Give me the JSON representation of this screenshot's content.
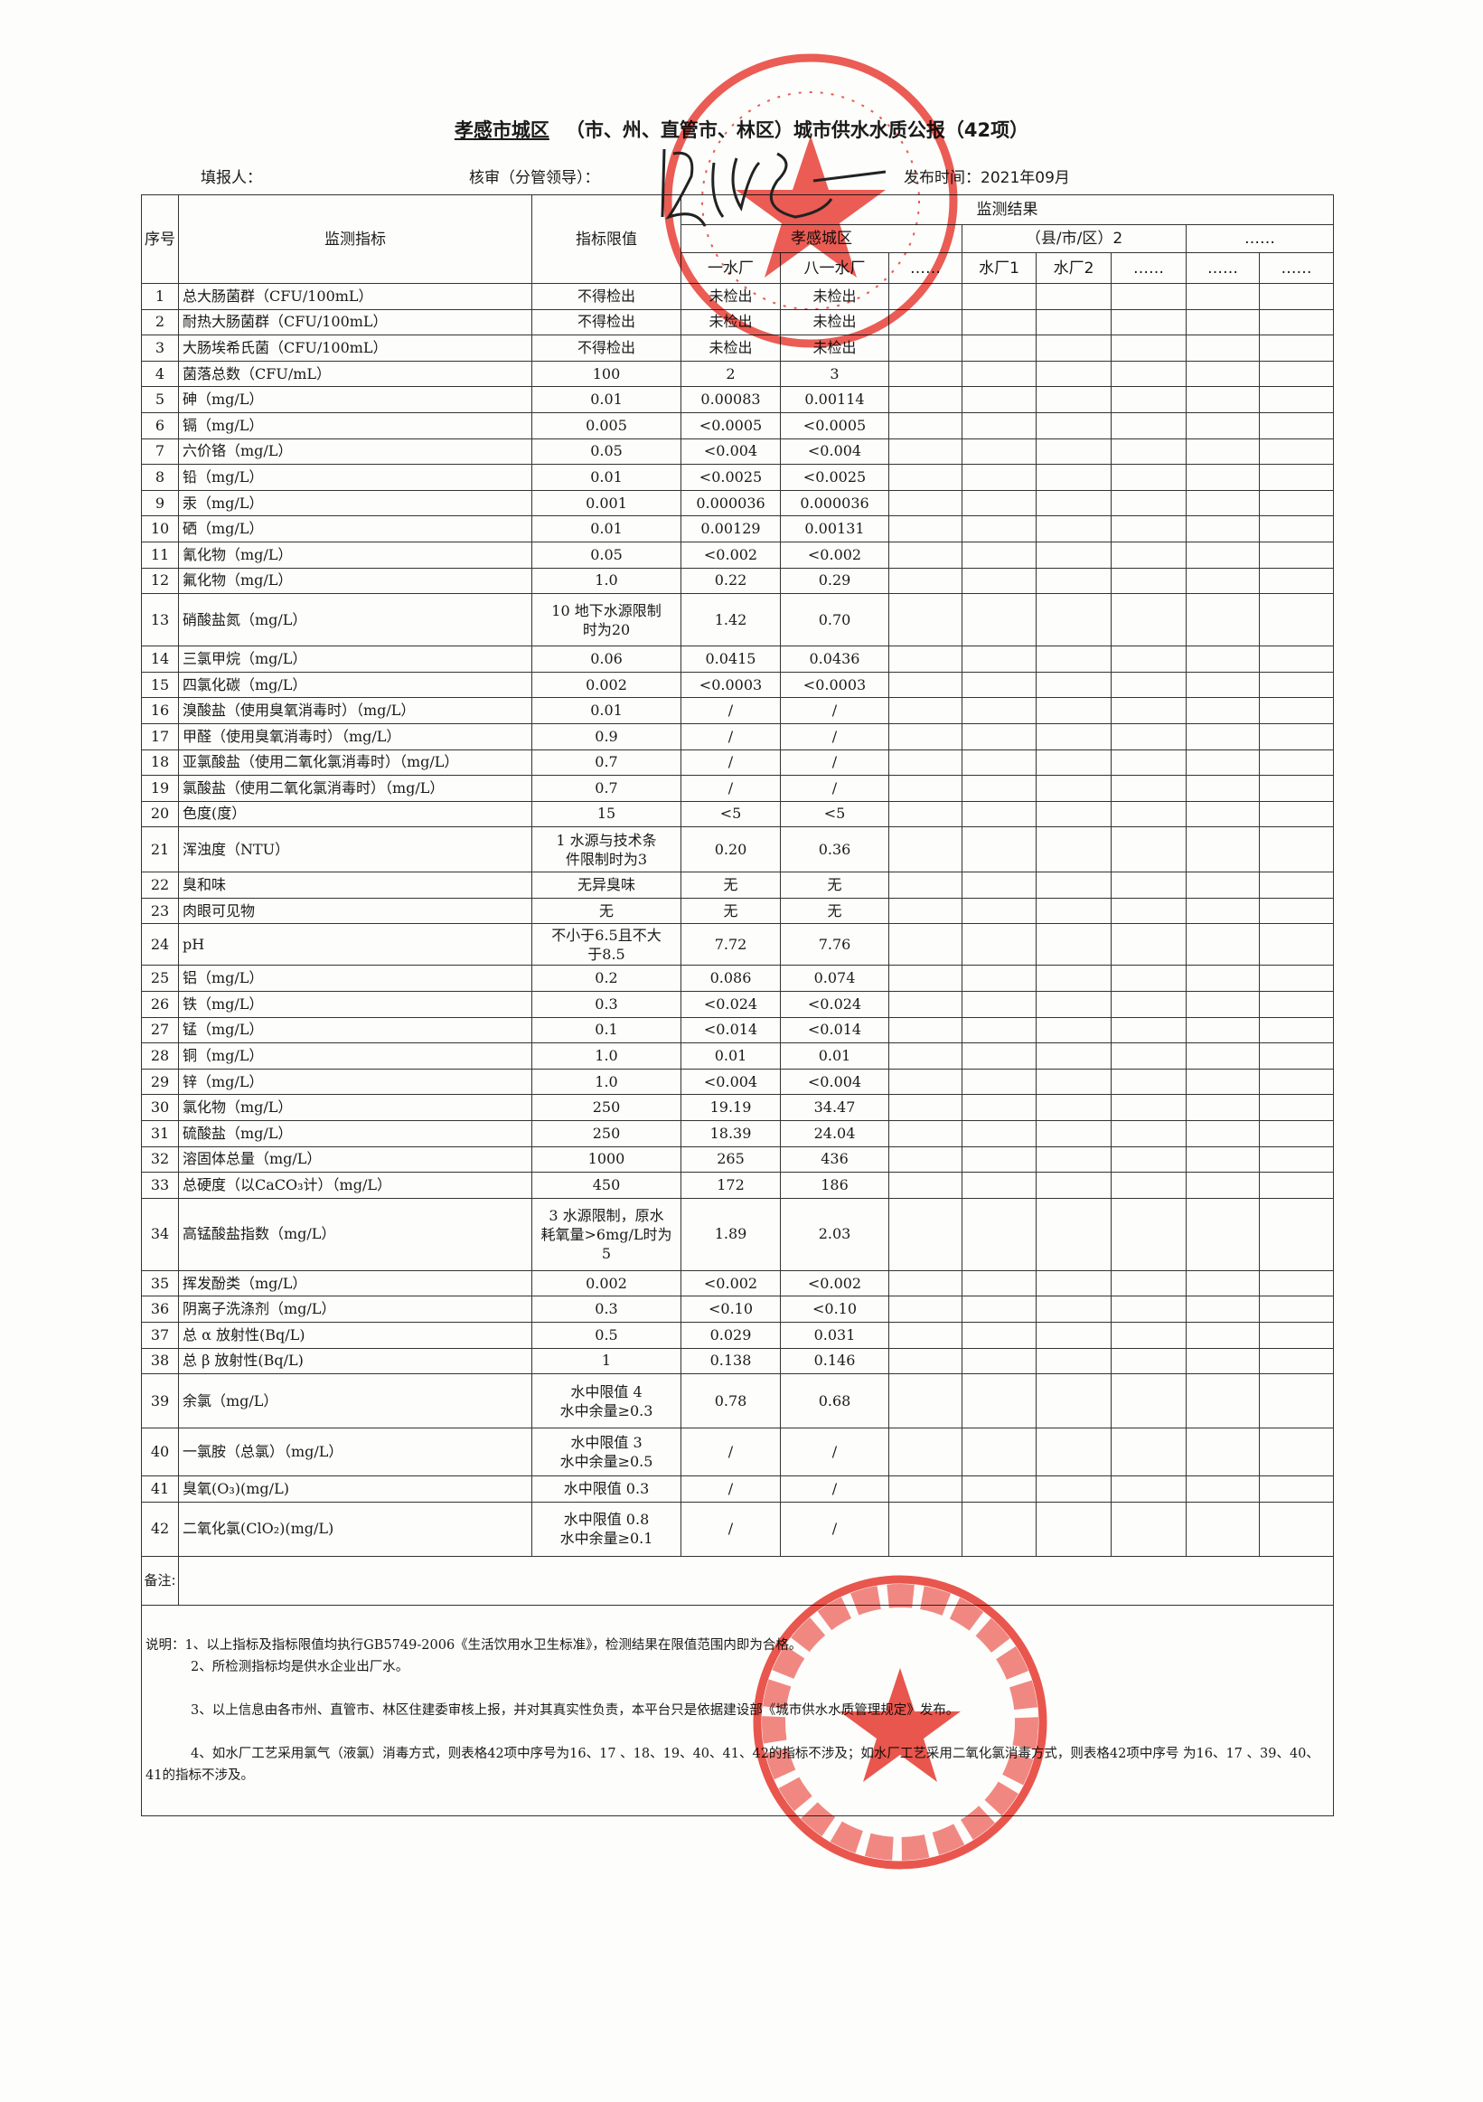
{
  "title": {
    "region": "孝感市城区",
    "rest": "（市、州、直管市、林区）城市供水水质公报（42项）"
  },
  "info": {
    "reporter": "填报人：",
    "reviewer": "核审（分管领导）：",
    "publish": "发布时间：2021年09月"
  },
  "header": {
    "no": "序号",
    "indicator": "监测指标",
    "limit": "指标限值",
    "results": "监测结果",
    "area1": "孝感城区",
    "area2": "（县/市/区）2",
    "area3": "……",
    "plants": [
      "一水厂",
      "八一水厂",
      "……",
      "水厂1",
      "水厂2",
      "……",
      "……",
      "……"
    ]
  },
  "rows": [
    [
      "1",
      "总大肠菌群（CFU/100mL）",
      "不得检出",
      "未检出",
      "未检出"
    ],
    [
      "2",
      "耐热大肠菌群（CFU/100mL）",
      "不得检出",
      "未检出",
      "未检出"
    ],
    [
      "3",
      "大肠埃希氏菌（CFU/100mL）",
      "不得检出",
      "未检出",
      "未检出"
    ],
    [
      "4",
      "菌落总数（CFU/mL）",
      "100",
      "2",
      "3"
    ],
    [
      "5",
      "砷（mg/L）",
      "0.01",
      "0.00083",
      "0.00114"
    ],
    [
      "6",
      "镉（mg/L）",
      "0.005",
      "<0.0005",
      "<0.0005"
    ],
    [
      "7",
      "六价铬（mg/L）",
      "0.05",
      "<0.004",
      "<0.004"
    ],
    [
      "8",
      "铅（mg/L）",
      "0.01",
      "<0.0025",
      "<0.0025"
    ],
    [
      "9",
      "汞（mg/L）",
      "0.001",
      "0.000036",
      "0.000036"
    ],
    [
      "10",
      "硒（mg/L）",
      "0.01",
      "0.00129",
      "0.00131"
    ],
    [
      "11",
      "氰化物（mg/L）",
      "0.05",
      "<0.002",
      "<0.002"
    ],
    [
      "12",
      "氟化物（mg/L）",
      "1.0",
      "0.22",
      "0.29"
    ],
    [
      "13",
      "硝酸盐氮（mg/L）",
      "10 地下水源限制\n时为20",
      "1.42",
      "0.70"
    ],
    [
      "14",
      "三氯甲烷（mg/L）",
      "0.06",
      "0.0415",
      "0.0436"
    ],
    [
      "15",
      "四氯化碳（mg/L）",
      "0.002",
      "<0.0003",
      "<0.0003"
    ],
    [
      "16",
      "溴酸盐（使用臭氧消毒时）（mg/L）",
      "0.01",
      "/",
      "/"
    ],
    [
      "17",
      "甲醛（使用臭氧消毒时）（mg/L）",
      "0.9",
      "/",
      "/"
    ],
    [
      "18",
      "亚氯酸盐（使用二氧化氯消毒时）（mg/L）",
      "0.7",
      "/",
      "/"
    ],
    [
      "19",
      "氯酸盐（使用二氧化氯消毒时）（mg/L）",
      "0.7",
      "/",
      "/"
    ],
    [
      "20",
      "色度(度）",
      "15",
      "<5",
      "<5"
    ],
    [
      "21",
      "浑浊度（NTU）",
      "1  水源与技术条\n件限制时为3",
      "0.20",
      "0.36"
    ],
    [
      "22",
      "臭和味",
      "无异臭味",
      "无",
      "无"
    ],
    [
      "23",
      "肉眼可见物",
      "无",
      "无",
      "无"
    ],
    [
      "24",
      "pH",
      "不小于6.5且不大\n于8.5",
      "7.72",
      "7.76"
    ],
    [
      "25",
      "铝（mg/L）",
      "0.2",
      "0.086",
      "0.074"
    ],
    [
      "26",
      "铁（mg/L）",
      "0.3",
      "<0.024",
      "<0.024"
    ],
    [
      "27",
      "锰（mg/L）",
      "0.1",
      "<0.014",
      "<0.014"
    ],
    [
      "28",
      "铜（mg/L）",
      "1.0",
      "0.01",
      "0.01"
    ],
    [
      "29",
      "锌（mg/L）",
      "1.0",
      "<0.004",
      "<0.004"
    ],
    [
      "30",
      "氯化物（mg/L）",
      "250",
      "19.19",
      "34.47"
    ],
    [
      "31",
      "硫酸盐（mg/L）",
      "250",
      "18.39",
      "24.04"
    ],
    [
      "32",
      "溶固体总量（mg/L）",
      "1000",
      "265",
      "436"
    ],
    [
      "33",
      "总硬度（以CaCO₃计）（mg/L）",
      "450",
      "172",
      "186"
    ],
    [
      "34",
      "高锰酸盐指数（mg/L）",
      "3 水源限制，原水\n耗氧量>6mg/L时为\n5",
      "1.89",
      "2.03"
    ],
    [
      "35",
      "挥发酚类（mg/L）",
      "0.002",
      "<0.002",
      "<0.002"
    ],
    [
      "36",
      "阴离子洗涤剂（mg/L）",
      "0.3",
      "<0.10",
      "<0.10"
    ],
    [
      "37",
      "总 α 放射性(Bq/L)",
      "0.5",
      "0.029",
      "0.031"
    ],
    [
      "38",
      "总 β 放射性(Bq/L)",
      "1",
      "0.138",
      "0.146"
    ],
    [
      "39",
      "余氯（mg/L）",
      "水中限值 4\n水中余量≥0.3",
      "0.78",
      "0.68"
    ],
    [
      "40",
      "一氯胺（总氯）（mg/L）",
      "水中限值 3\n水中余量≥0.5",
      "/",
      "/"
    ],
    [
      "41",
      "臭氧(O₃)(mg/L)",
      "水中限值 0.3",
      "/",
      "/"
    ],
    [
      "42",
      "二氧化氯(ClO₂)(mg/L)",
      "水中限值 0.8\n水中余量≥0.1",
      "/",
      "/"
    ]
  ],
  "remarks_label": "备注:",
  "notes": [
    "说明：1、以上指标及指标限值均执行GB5749-2006《生活饮用水卫生标准》，检测结果在限值范围内即为合格。",
    "2、所检测指标均是供水企业出厂水。",
    "3、以上信息由各市州、直管市、林区住建委审核上报，并对其真实性负责，本平台只是依据建设部《城市供水水质管理规定》发布。",
    "4、如水厂工艺采用氯气（液氯）消毒方式，则表格42项中序号为16、17 、18、19、40、41、42的指标不涉及；如水厂工艺采用二氧化氯消毒方式，则表格42项中序号 为16、17 、39、40、41的指标不涉及。"
  ],
  "colors": {
    "stamp": "#e8392f",
    "ink": "#1a1a1a"
  }
}
